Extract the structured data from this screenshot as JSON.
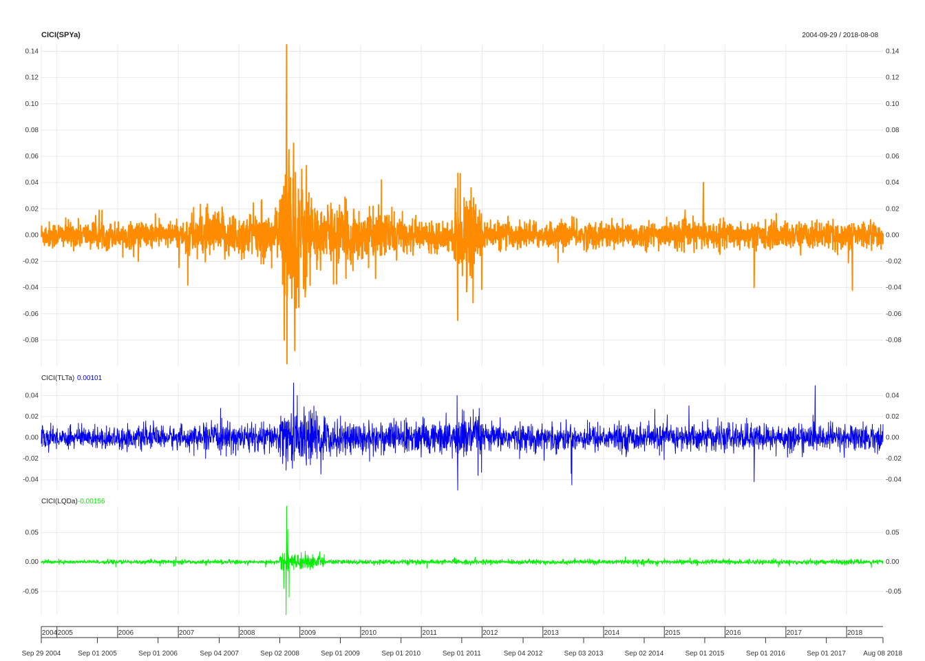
{
  "header": {
    "title": "CICI(SPYa)",
    "date_range": "2004-09-29 / 2018-08-08"
  },
  "colors": {
    "spy": "#ff8c00",
    "tlt": "#0000ee",
    "lqd": "#00ee00",
    "grid": "#e8e8e8"
  },
  "chart_data": [
    {
      "type": "line",
      "title": "CICI(SPYa)",
      "series": [
        {
          "name": "CICI(SPYa)"
        }
      ],
      "ylim": [
        -0.1,
        0.145
      ],
      "yticks": [
        0.14,
        0.12,
        0.1,
        0.08,
        0.06,
        0.04,
        0.02,
        0.0,
        -0.02,
        -0.04,
        -0.06,
        -0.08
      ],
      "ytick_labels": [
        "0.14",
        "0.12",
        "0.10",
        "0.08",
        "0.06",
        "0.04",
        "0.02",
        "0.00",
        "-0.02",
        "-0.04",
        "-0.06",
        "-0.08"
      ],
      "x_start": "2004-09-29",
      "x_end": "2018-08-08",
      "regimes": [
        {
          "from": "2004-09-29",
          "to": "2007-02-15",
          "amp": 0.009
        },
        {
          "from": "2007-02-15",
          "to": "2008-09-01",
          "amp": 0.016
        },
        {
          "from": "2008-09-01",
          "to": "2009-03-15",
          "amp": 0.045
        },
        {
          "from": "2009-03-15",
          "to": "2009-12-31",
          "amp": 0.02
        },
        {
          "from": "2010-01-01",
          "to": "2010-09-01",
          "amp": 0.016
        },
        {
          "from": "2010-09-01",
          "to": "2011-07-15",
          "amp": 0.01
        },
        {
          "from": "2011-07-15",
          "to": "2011-12-31",
          "amp": 0.025
        },
        {
          "from": "2012-01-01",
          "to": "2018-08-08",
          "amp": 0.009
        }
      ],
      "spikes": [
        {
          "date": "2008-10-13",
          "value": 0.145
        },
        {
          "date": "2008-10-27",
          "value": 0.065
        },
        {
          "date": "2008-11-24",
          "value": 0.07
        },
        {
          "date": "2008-10-15",
          "value": -0.098
        },
        {
          "date": "2008-12-01",
          "value": -0.088
        },
        {
          "date": "2008-09-29",
          "value": -0.08
        },
        {
          "date": "2011-08-08",
          "value": -0.065
        },
        {
          "date": "2011-08-09",
          "value": 0.047
        },
        {
          "date": "2016-06-24",
          "value": -0.04
        },
        {
          "date": "2015-08-24",
          "value": 0.04
        },
        {
          "date": "2018-02-05",
          "value": -0.042
        },
        {
          "date": "2007-02-27",
          "value": -0.038
        },
        {
          "date": "2010-05-06",
          "value": 0.042
        }
      ]
    },
    {
      "type": "line",
      "title": "CICI(TLTa)",
      "last_value": "0.00101",
      "series": [
        {
          "name": "CICI(TLTa)",
          "last": 0.00101
        }
      ],
      "ylim": [
        -0.05,
        0.052
      ],
      "yticks": [
        0.04,
        0.02,
        0.0,
        -0.02,
        -0.04
      ],
      "ytick_labels": [
        "0.04",
        "0.02",
        "0.00",
        "-0.02",
        "-0.04"
      ],
      "x_start": "2004-09-29",
      "x_end": "2018-08-08",
      "regimes": [
        {
          "from": "2004-09-29",
          "to": "2007-06-01",
          "amp": 0.009
        },
        {
          "from": "2007-06-01",
          "to": "2008-09-01",
          "amp": 0.012
        },
        {
          "from": "2008-09-01",
          "to": "2009-06-01",
          "amp": 0.022
        },
        {
          "from": "2009-06-01",
          "to": "2011-07-01",
          "amp": 0.014
        },
        {
          "from": "2011-07-01",
          "to": "2012-01-01",
          "amp": 0.02
        },
        {
          "from": "2012-01-01",
          "to": "2018-08-08",
          "amp": 0.011
        }
      ],
      "spikes": [
        {
          "date": "2008-11-24",
          "value": 0.052
        },
        {
          "date": "2008-12-16",
          "value": 0.04
        },
        {
          "date": "2011-08-08",
          "value": -0.05
        },
        {
          "date": "2011-08-04",
          "value": 0.04
        },
        {
          "date": "2016-06-24",
          "value": -0.042
        },
        {
          "date": "2008-10-10",
          "value": -0.031
        },
        {
          "date": "2013-06-20",
          "value": -0.034
        }
      ]
    },
    {
      "type": "line",
      "title": "CICI(LQDa)",
      "last_value": "-0.00156",
      "series": [
        {
          "name": "CICI(LQDa)",
          "last": -0.00156
        }
      ],
      "ylim": [
        -0.09,
        0.095
      ],
      "yticks": [
        0.05,
        0.0,
        -0.05
      ],
      "ytick_labels": [
        "0.05",
        "0.00",
        "-0.05"
      ],
      "x_start": "2004-09-29",
      "x_end": "2018-08-08",
      "regimes": [
        {
          "from": "2004-09-29",
          "to": "2008-09-01",
          "amp": 0.003
        },
        {
          "from": "2008-09-01",
          "to": "2009-06-01",
          "amp": 0.012
        },
        {
          "from": "2009-06-01",
          "to": "2018-08-08",
          "amp": 0.0035
        }
      ],
      "spikes": [
        {
          "date": "2008-10-13",
          "value": 0.095
        },
        {
          "date": "2008-10-10",
          "value": -0.09
        },
        {
          "date": "2008-10-20",
          "value": 0.055
        },
        {
          "date": "2008-10-28",
          "value": -0.06
        },
        {
          "date": "2008-09-26",
          "value": -0.045
        }
      ]
    }
  ],
  "x_axis": {
    "year_labels": [
      {
        "date": "2004-09-29",
        "label": "2004"
      },
      {
        "date": "2005-01-01",
        "label": "2005"
      },
      {
        "date": "2006-01-01",
        "label": "2006"
      },
      {
        "date": "2007-01-01",
        "label": "2007"
      },
      {
        "date": "2008-01-01",
        "label": "2008"
      },
      {
        "date": "2009-01-01",
        "label": "2009"
      },
      {
        "date": "2010-01-01",
        "label": "2010"
      },
      {
        "date": "2011-01-01",
        "label": "2011"
      },
      {
        "date": "2012-01-01",
        "label": "2012"
      },
      {
        "date": "2013-01-01",
        "label": "2013"
      },
      {
        "date": "2014-01-01",
        "label": "2014"
      },
      {
        "date": "2015-01-01",
        "label": "2015"
      },
      {
        "date": "2016-01-01",
        "label": "2016"
      },
      {
        "date": "2017-01-01",
        "label": "2017"
      },
      {
        "date": "2018-01-01",
        "label": "2018"
      }
    ],
    "date_labels": [
      {
        "date": "2004-09-29",
        "label": "Sep 29 2004"
      },
      {
        "date": "2005-09-01",
        "label": "Sep 01 2005"
      },
      {
        "date": "2006-09-01",
        "label": "Sep 01 2006"
      },
      {
        "date": "2007-09-04",
        "label": "Sep 04 2007"
      },
      {
        "date": "2008-09-02",
        "label": "Sep 02 2008"
      },
      {
        "date": "2009-09-01",
        "label": "Sep 01 2009"
      },
      {
        "date": "2010-09-01",
        "label": "Sep 01 2010"
      },
      {
        "date": "2011-09-01",
        "label": "Sep 01 2011"
      },
      {
        "date": "2012-09-04",
        "label": "Sep 04 2012"
      },
      {
        "date": "2013-09-03",
        "label": "Sep 03 2013"
      },
      {
        "date": "2014-09-02",
        "label": "Sep 02 2014"
      },
      {
        "date": "2015-09-01",
        "label": "Sep 01 2015"
      },
      {
        "date": "2016-09-01",
        "label": "Sep 01 2016"
      },
      {
        "date": "2017-09-01",
        "label": "Sep 01 2017"
      },
      {
        "date": "2018-08-08",
        "label": "Aug 08 2018"
      }
    ]
  }
}
